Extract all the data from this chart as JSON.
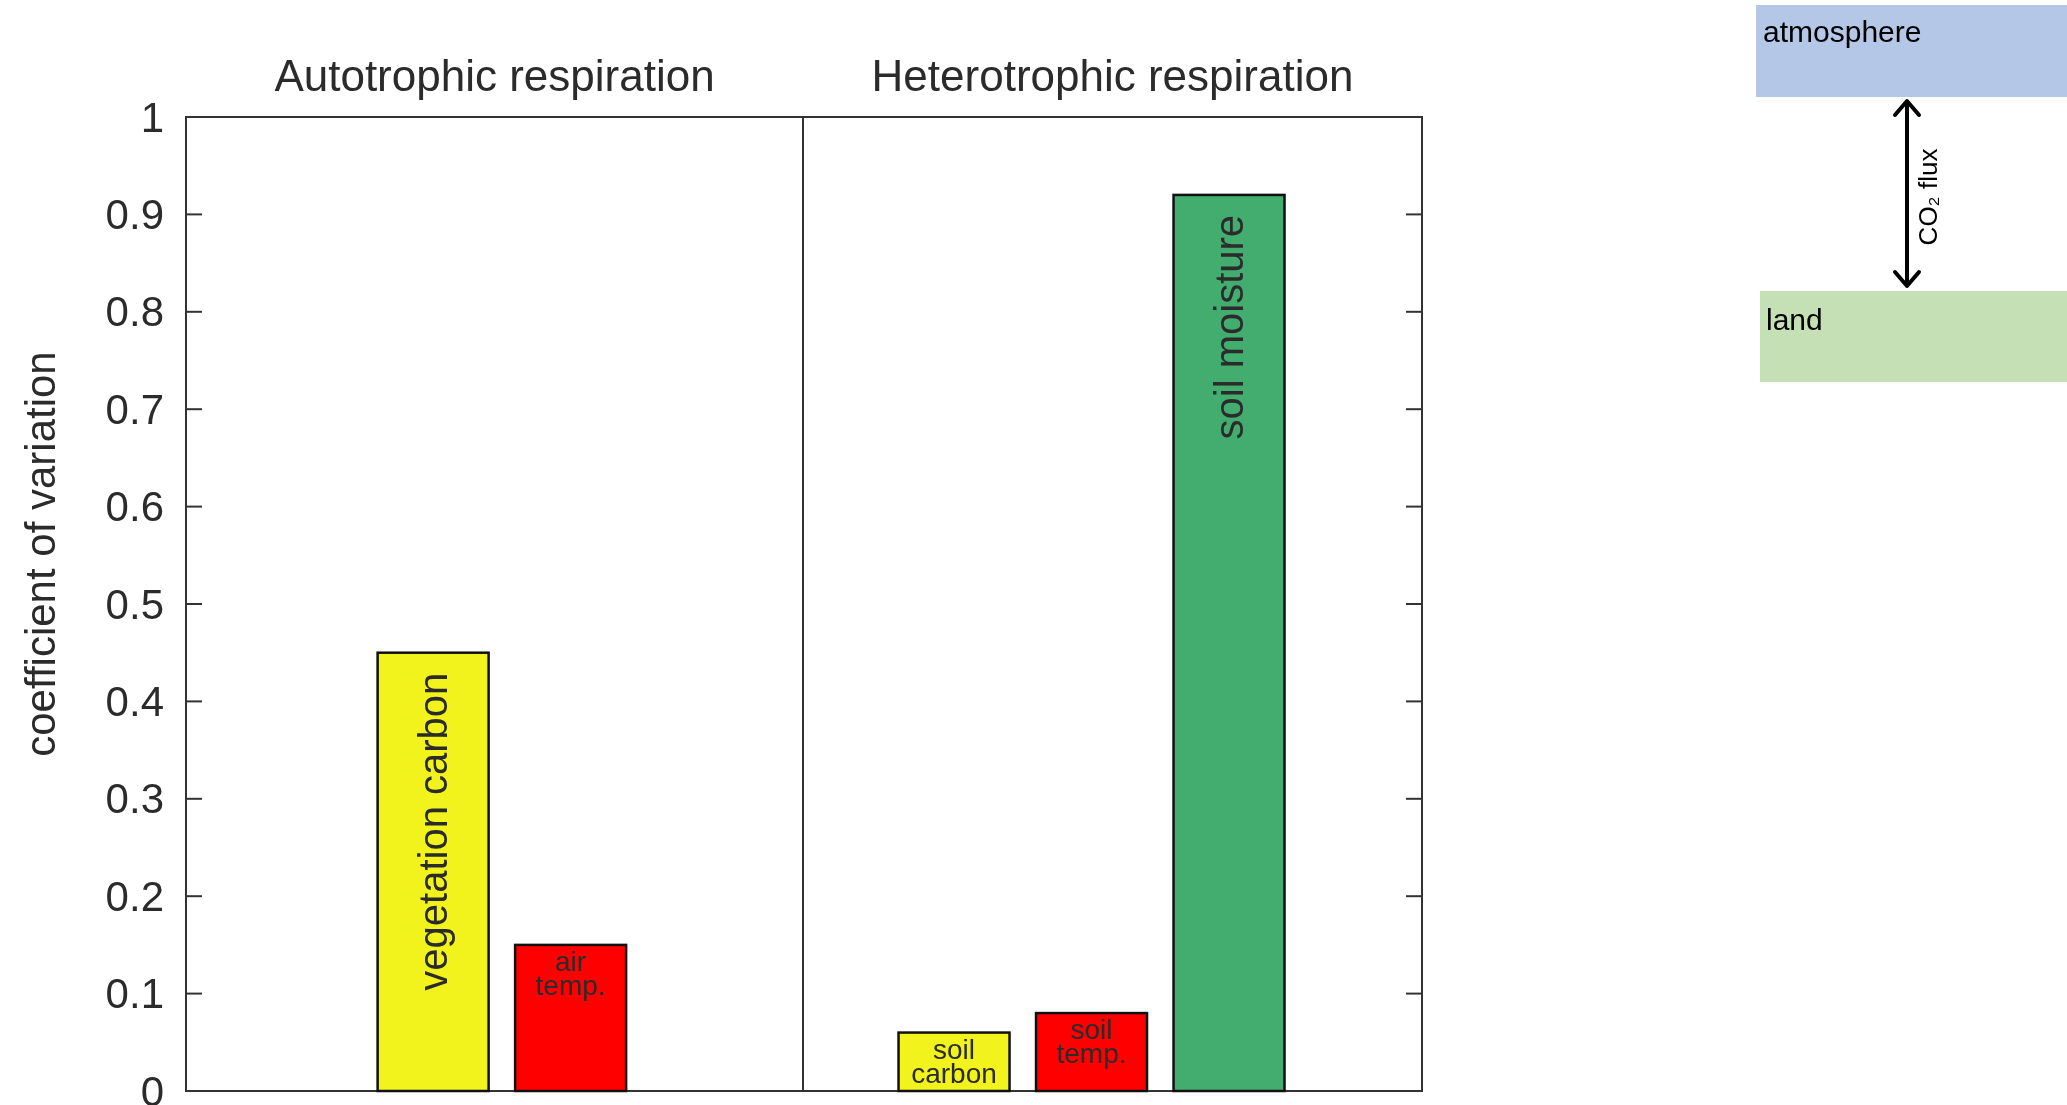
{
  "chart_data": [
    {
      "type": "bar",
      "title": "Autotrophic respiration",
      "ylabel": "coefficient of variation",
      "categories": [
        "vegetation carbon",
        "air temp."
      ],
      "values": [
        0.45,
        0.15
      ],
      "colors": [
        "#f2f21c",
        "#ff0000"
      ],
      "ylim": [
        0,
        1
      ],
      "yticks": [
        0,
        0.1,
        0.2,
        0.3,
        0.4,
        0.5,
        0.6,
        0.7,
        0.8,
        0.9,
        1
      ],
      "tick_labels": "y"
    },
    {
      "type": "bar",
      "title": "Heterotrophic respiration",
      "categories": [
        "soil carbon",
        "soil temp.",
        "soil moisture"
      ],
      "values": [
        0.06,
        0.08,
        0.92
      ],
      "colors": [
        "#f2f21c",
        "#ff0000",
        "#42ad6e"
      ],
      "ylim": [
        0,
        1
      ],
      "yticks": [
        0,
        0.1,
        0.2,
        0.3,
        0.4,
        0.5,
        0.6,
        0.7,
        0.8,
        0.9,
        1
      ],
      "tick_labels": false
    },
    {
      "type": "other",
      "annotations": [
        "atmosphere",
        "CO₂ flux",
        "land"
      ]
    }
  ]
}
